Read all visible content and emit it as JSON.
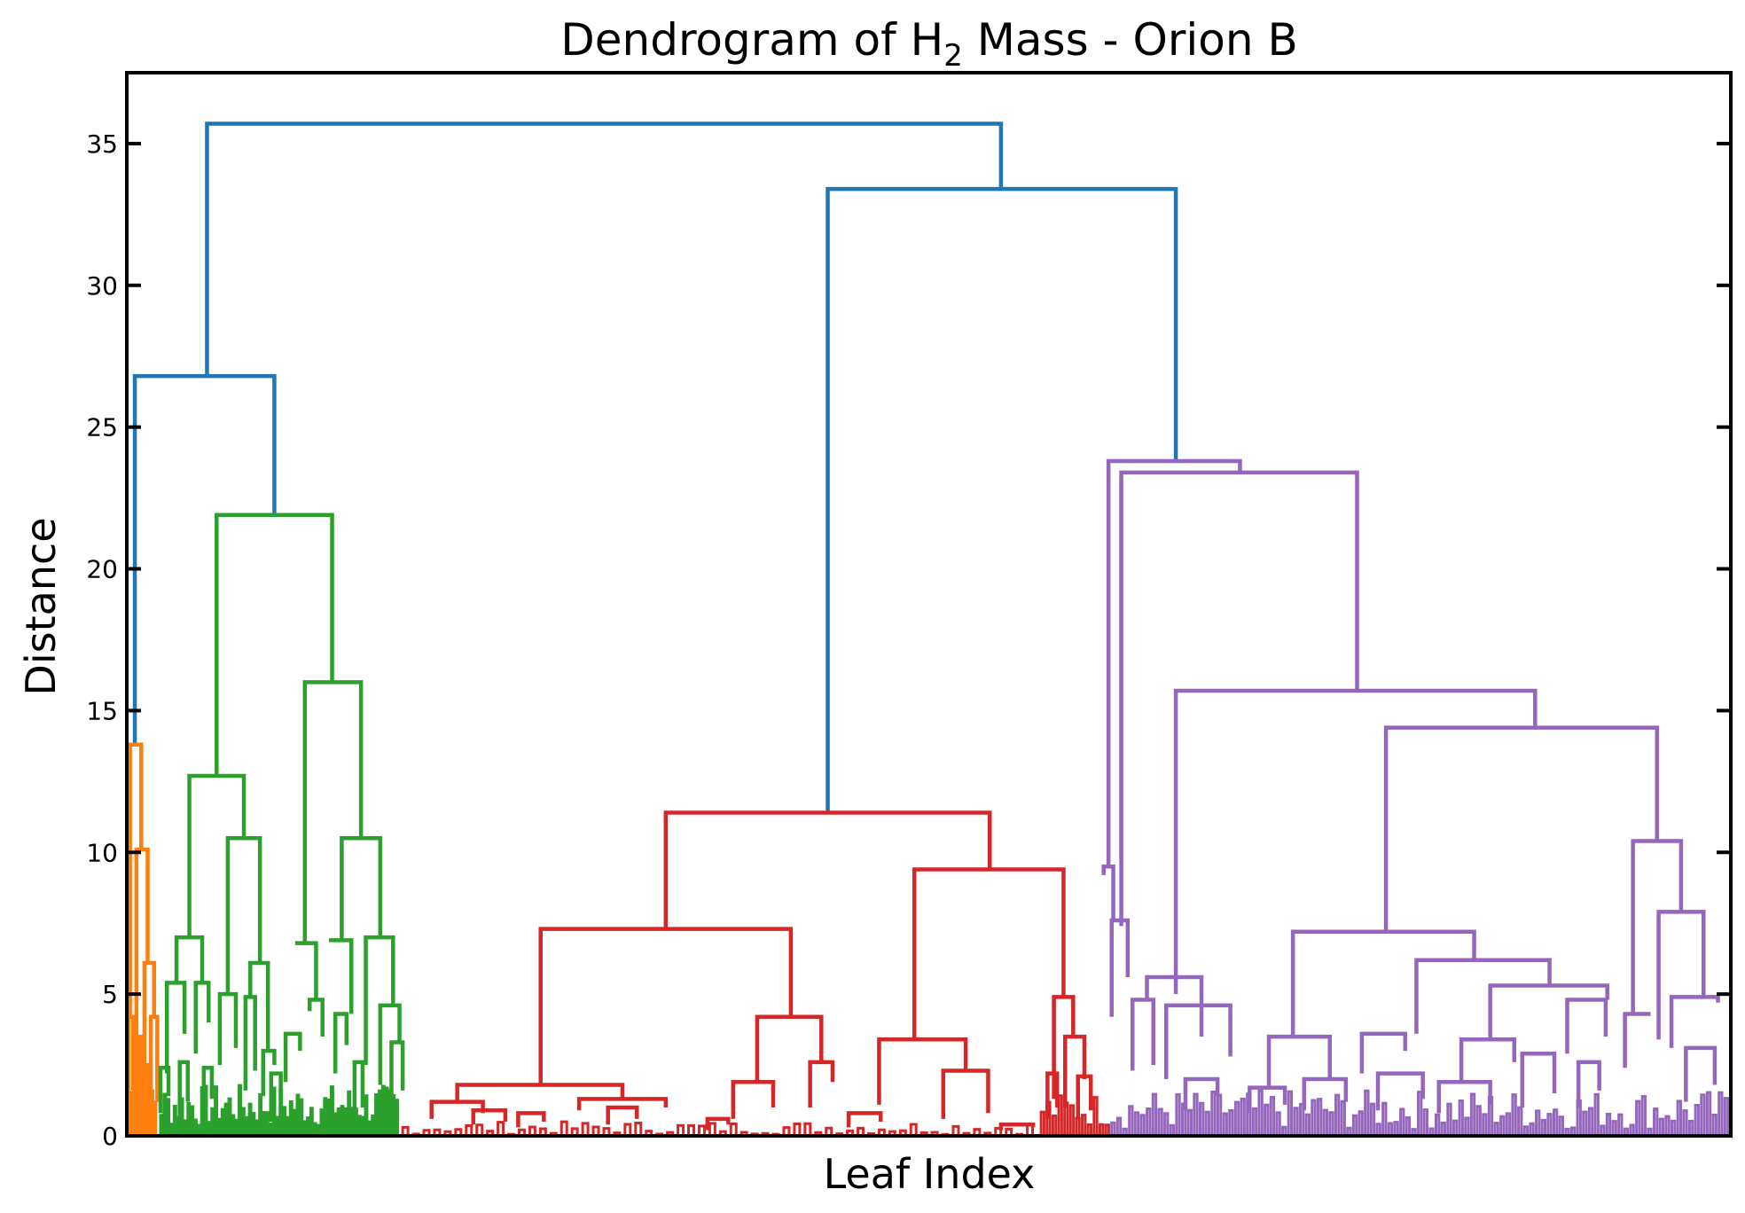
{
  "chart_data": {
    "type": "dendrogram",
    "title_main": "Dendrogram of H",
    "title_sub": "2",
    "title_rest": " Mass - Orion B",
    "xlabel": "Leaf Index",
    "ylabel": "Distance",
    "xlim": [
      0,
      1000
    ],
    "ylim": [
      0,
      37.5
    ],
    "yticks": [
      0,
      5,
      10,
      15,
      20,
      25,
      30,
      35
    ],
    "ytick_labels": [
      "0",
      "5",
      "10",
      "15",
      "20",
      "25",
      "30",
      "35"
    ],
    "colors": {
      "above_threshold": "#1f77b4",
      "orange": "#ff7f0e",
      "green": "#2ca02c",
      "red": "#d62728",
      "purple": "#9467bd"
    },
    "links": [
      {
        "c": "#1f77b4",
        "xl": 50,
        "xr": 545,
        "yl": 26.8,
        "yr": 33.4,
        "h": 35.7
      },
      {
        "c": "#1f77b4",
        "xl": 5,
        "xr": 92,
        "yl": 13.8,
        "yr": 21.9,
        "h": 26.8
      },
      {
        "c": "#1f77b4",
        "xl": 437,
        "xr": 654,
        "yl": 11.4,
        "yr": 23.8,
        "h": 33.4
      },
      {
        "c": "#ff7f0e",
        "xl": 2,
        "xr": 9,
        "yl": 4.2,
        "yr": 10.1,
        "h": 13.8
      },
      {
        "c": "#ff7f0e",
        "xl": 6,
        "xr": 13,
        "yl": 2.2,
        "yr": 6.1,
        "h": 10.1
      },
      {
        "c": "#ff7f0e",
        "xl": 11,
        "xr": 17,
        "yl": 1.8,
        "yr": 4.2,
        "h": 6.1
      },
      {
        "c": "#ff7f0e",
        "xl": 15,
        "xr": 19,
        "yl": 0.6,
        "yr": 1.2,
        "h": 4.2
      },
      {
        "c": "#ff7f0e",
        "xl": 1,
        "xr": 4,
        "yl": 0.8,
        "yr": 1.6,
        "h": 4.2
      },
      {
        "c": "#ff7f0e",
        "xl": 8,
        "xr": 10,
        "yl": 0.4,
        "yr": 0.9,
        "h": 3.5
      },
      {
        "c": "#ff7f0e",
        "xl": 12,
        "xr": 14,
        "yl": 0.3,
        "yr": 0.7,
        "h": 2.5
      },
      {
        "c": "#ff7f0e",
        "xl": 5,
        "xr": 7,
        "yl": 0.2,
        "yr": 0.5,
        "h": 2.8
      },
      {
        "c": "#2ca02c",
        "xl": 56,
        "xr": 128,
        "yl": 12.7,
        "yr": 16.0,
        "h": 21.9
      },
      {
        "c": "#2ca02c",
        "xl": 39,
        "xr": 73,
        "yl": 7.0,
        "yr": 10.5,
        "h": 12.7
      },
      {
        "c": "#2ca02c",
        "xl": 111,
        "xr": 146,
        "yl": 6.8,
        "yr": 10.5,
        "h": 16.0
      },
      {
        "c": "#2ca02c",
        "xl": 63,
        "xr": 83,
        "yl": 5.0,
        "yr": 6.1,
        "h": 10.5
      },
      {
        "c": "#2ca02c",
        "xl": 134,
        "xr": 158,
        "yl": 6.9,
        "yr": 7.0,
        "h": 10.5
      },
      {
        "c": "#2ca02c",
        "xl": 31,
        "xr": 47,
        "yl": 5.4,
        "yr": 5.4,
        "h": 7.0
      },
      {
        "c": "#2ca02c",
        "xl": 25,
        "xr": 36,
        "yl": 2.2,
        "yr": 3.6,
        "h": 5.4
      },
      {
        "c": "#2ca02c",
        "xl": 43,
        "xr": 51,
        "yl": 2.9,
        "yr": 4.0,
        "h": 5.4
      },
      {
        "c": "#2ca02c",
        "xl": 58,
        "xr": 68,
        "yl": 2.5,
        "yr": 3.1,
        "h": 5.0
      },
      {
        "c": "#2ca02c",
        "xl": 77,
        "xr": 88,
        "yl": 4.9,
        "yr": 3.0,
        "h": 6.1
      },
      {
        "c": "#2ca02c",
        "xl": 74,
        "xr": 80,
        "yl": 1.6,
        "yr": 2.3,
        "h": 4.9
      },
      {
        "c": "#2ca02c",
        "xl": 85,
        "xr": 92,
        "yl": 1.4,
        "yr": 2.5,
        "h": 3.0
      },
      {
        "c": "#2ca02c",
        "xl": 105,
        "xr": 118,
        "yl": 6.8,
        "yr": 4.8,
        "h": 6.8
      },
      {
        "c": "#2ca02c",
        "xl": 114,
        "xr": 122,
        "yl": 4.4,
        "yr": 3.5,
        "h": 4.8
      },
      {
        "c": "#2ca02c",
        "xl": 99,
        "xr": 108,
        "yl": 1.9,
        "yr": 3.0,
        "h": 3.6
      },
      {
        "c": "#2ca02c",
        "xl": 126,
        "xr": 140,
        "yl": 6.9,
        "yr": 4.3,
        "h": 6.9
      },
      {
        "c": "#2ca02c",
        "xl": 130,
        "xr": 137,
        "yl": 2.2,
        "yr": 3.2,
        "h": 4.3
      },
      {
        "c": "#2ca02c",
        "xl": 149,
        "xr": 166,
        "yl": 2.5,
        "yr": 4.6,
        "h": 7.0
      },
      {
        "c": "#2ca02c",
        "xl": 158,
        "xr": 170,
        "yl": 1.8,
        "yr": 3.3,
        "h": 4.6
      },
      {
        "c": "#2ca02c",
        "xl": 165,
        "xr": 172,
        "yl": 0.9,
        "yr": 1.6,
        "h": 3.3
      },
      {
        "c": "#2ca02c",
        "xl": 21,
        "xr": 26,
        "yl": 0.8,
        "yr": 1.4,
        "h": 2.4
      },
      {
        "c": "#2ca02c",
        "xl": 33,
        "xr": 38,
        "yl": 0.6,
        "yr": 1.2,
        "h": 2.6
      },
      {
        "c": "#2ca02c",
        "xl": 48,
        "xr": 53,
        "yl": 0.7,
        "yr": 1.3,
        "h": 2.4
      },
      {
        "c": "#2ca02c",
        "xl": 90,
        "xr": 96,
        "yl": 0.5,
        "yr": 1.1,
        "h": 2.2
      },
      {
        "c": "#2ca02c",
        "xl": 142,
        "xr": 147,
        "yl": 0.7,
        "yr": 1.0,
        "h": 2.6
      },
      {
        "c": "#d62728",
        "xl": 336,
        "xr": 538,
        "yl": 7.3,
        "yr": 9.4,
        "h": 11.4
      },
      {
        "c": "#d62728",
        "xl": 258,
        "xr": 414,
        "yl": 1.8,
        "yr": 4.2,
        "h": 7.3
      },
      {
        "c": "#d62728",
        "xl": 491,
        "xr": 584,
        "yl": 3.4,
        "yr": 4.9,
        "h": 9.4
      },
      {
        "c": "#d62728",
        "xl": 206,
        "xr": 309,
        "yl": 1.2,
        "yr": 1.3,
        "h": 1.8
      },
      {
        "c": "#d62728",
        "xl": 393,
        "xr": 433,
        "yl": 1.9,
        "yr": 2.6,
        "h": 4.2
      },
      {
        "c": "#d62728",
        "xl": 469,
        "xr": 523,
        "yl": 1.1,
        "yr": 2.3,
        "h": 3.4
      },
      {
        "c": "#d62728",
        "xl": 578,
        "xr": 590,
        "yl": 1.3,
        "yr": 3.5,
        "h": 4.9
      },
      {
        "c": "#d62728",
        "xl": 585,
        "xr": 597,
        "yl": 1.0,
        "yr": 2.0,
        "h": 3.5
      },
      {
        "c": "#d62728",
        "xl": 378,
        "xr": 403,
        "yl": 0.6,
        "yr": 1.0,
        "h": 1.9
      },
      {
        "c": "#d62728",
        "xl": 426,
        "xr": 440,
        "yl": 1.0,
        "yr": 1.9,
        "h": 2.6
      },
      {
        "c": "#d62728",
        "xl": 509,
        "xr": 537,
        "yl": 0.6,
        "yr": 0.8,
        "h": 2.3
      },
      {
        "c": "#d62728",
        "xl": 190,
        "xr": 222,
        "yl": 0.6,
        "yr": 0.8,
        "h": 1.2
      },
      {
        "c": "#d62728",
        "xl": 282,
        "xr": 336,
        "yl": 0.9,
        "yr": 1.0,
        "h": 1.3
      },
      {
        "c": "#d62728",
        "xl": 216,
        "xr": 236,
        "yl": 0.4,
        "yr": 0.5,
        "h": 0.9
      },
      {
        "c": "#d62728",
        "xl": 244,
        "xr": 260,
        "yl": 0.3,
        "yr": 0.5,
        "h": 0.8
      },
      {
        "c": "#d62728",
        "xl": 300,
        "xr": 318,
        "yl": 0.4,
        "yr": 0.6,
        "h": 1.0
      },
      {
        "c": "#d62728",
        "xl": 362,
        "xr": 375,
        "yl": 0.2,
        "yr": 0.4,
        "h": 0.6
      },
      {
        "c": "#d62728",
        "xl": 450,
        "xr": 470,
        "yl": 0.3,
        "yr": 0.5,
        "h": 0.8
      },
      {
        "c": "#d62728",
        "xl": 545,
        "xr": 565,
        "yl": 0.2,
        "yr": 0.3,
        "h": 0.4
      },
      {
        "c": "#d62728",
        "xl": 574,
        "xr": 580,
        "yl": 0.6,
        "yr": 1.0,
        "h": 2.2
      },
      {
        "c": "#d62728",
        "xl": 593,
        "xr": 601,
        "yl": 0.6,
        "yr": 0.9,
        "h": 2.1
      },
      {
        "c": "#9467bd",
        "xl": 612,
        "xr": 694,
        "yl": 9.5,
        "yr": 23.4,
        "h": 23.8
      },
      {
        "c": "#9467bd",
        "xl": 620,
        "xr": 767,
        "yl": 7.4,
        "yr": 15.7,
        "h": 23.4
      },
      {
        "c": "#9467bd",
        "xl": 654,
        "xr": 878,
        "yl": 5.0,
        "yr": 14.4,
        "h": 15.7
      },
      {
        "c": "#9467bd",
        "xl": 785,
        "xr": 954,
        "yl": 7.2,
        "yr": 10.4,
        "h": 14.4
      },
      {
        "c": "#9467bd",
        "xl": 727,
        "xr": 840,
        "yl": 3.5,
        "yr": 6.2,
        "h": 7.2
      },
      {
        "c": "#9467bd",
        "xl": 804,
        "xr": 887,
        "yl": 3.6,
        "yr": 5.3,
        "h": 6.2
      },
      {
        "c": "#9467bd",
        "xl": 850,
        "xr": 923,
        "yl": 3.4,
        "yr": 4.8,
        "h": 5.3
      },
      {
        "c": "#9467bd",
        "xl": 939,
        "xr": 969,
        "yl": 4.3,
        "yr": 7.9,
        "h": 10.4
      },
      {
        "c": "#9467bd",
        "xl": 955,
        "xr": 983,
        "yl": 3.4,
        "yr": 4.9,
        "h": 7.9
      },
      {
        "c": "#9467bd",
        "xl": 609,
        "xr": 615,
        "yl": 9.2,
        "yr": 7.6,
        "h": 9.5
      },
      {
        "c": "#9467bd",
        "xl": 614,
        "xr": 624,
        "yl": 4.2,
        "yr": 5.6,
        "h": 7.6
      },
      {
        "c": "#9467bd",
        "xl": 636,
        "xr": 670,
        "yl": 4.8,
        "yr": 3.5,
        "h": 5.6
      },
      {
        "c": "#9467bd",
        "xl": 627,
        "xr": 640,
        "yl": 2.3,
        "yr": 2.5,
        "h": 4.8
      },
      {
        "c": "#9467bd",
        "xl": 648,
        "xr": 688,
        "yl": 2.0,
        "yr": 2.8,
        "h": 4.6
      },
      {
        "c": "#9467bd",
        "xl": 712,
        "xr": 750,
        "yl": 1.7,
        "yr": 2.0,
        "h": 3.5
      },
      {
        "c": "#9467bd",
        "xl": 770,
        "xr": 797,
        "yl": 2.2,
        "yr": 3.0,
        "h": 3.6
      },
      {
        "c": "#9467bd",
        "xl": 832,
        "xr": 865,
        "yl": 1.9,
        "yr": 2.6,
        "h": 3.4
      },
      {
        "c": "#9467bd",
        "xl": 898,
        "xr": 922,
        "yl": 2.9,
        "yr": 3.5,
        "h": 4.8
      },
      {
        "c": "#9467bd",
        "xl": 934,
        "xr": 950,
        "yl": 2.4,
        "yr": 4.3,
        "h": 4.3
      },
      {
        "c": "#9467bd",
        "xl": 963,
        "xr": 992,
        "yl": 3.1,
        "yr": 4.7,
        "h": 4.9
      },
      {
        "c": "#9467bd",
        "xl": 700,
        "xr": 722,
        "yl": 0.8,
        "yr": 1.1,
        "h": 1.7
      },
      {
        "c": "#9467bd",
        "xl": 734,
        "xr": 760,
        "yl": 0.9,
        "yr": 1.2,
        "h": 2.0
      },
      {
        "c": "#9467bd",
        "xl": 780,
        "xr": 808,
        "yl": 0.9,
        "yr": 1.3,
        "h": 2.2
      },
      {
        "c": "#9467bd",
        "xl": 818,
        "xr": 850,
        "yl": 0.8,
        "yr": 1.1,
        "h": 1.9
      },
      {
        "c": "#9467bd",
        "xl": 870,
        "xr": 890,
        "yl": 1.0,
        "yr": 1.5,
        "h": 2.9
      },
      {
        "c": "#9467bd",
        "xl": 905,
        "xr": 918,
        "yl": 1.0,
        "yr": 1.6,
        "h": 2.6
      },
      {
        "c": "#9467bd",
        "xl": 972,
        "xr": 990,
        "yl": 1.2,
        "yr": 1.8,
        "h": 3.1
      },
      {
        "c": "#9467bd",
        "xl": 660,
        "xr": 680,
        "yl": 0.9,
        "yr": 1.4,
        "h": 2.0
      }
    ],
    "leaf_fans": [
      {
        "c": "#ff7f0e",
        "x0": 1,
        "x1": 19,
        "n": 20,
        "hmin": 0.3,
        "hmax": 2.5
      },
      {
        "c": "#2ca02c",
        "x0": 21,
        "x1": 170,
        "n": 140,
        "hmin": 0.3,
        "hmax": 1.8
      },
      {
        "c": "#d62728",
        "x0": 172,
        "x1": 568,
        "n": 120,
        "hmin": 0.05,
        "hmax": 0.5
      },
      {
        "c": "#d62728",
        "x0": 570,
        "x1": 614,
        "n": 24,
        "hmin": 0.3,
        "hmax": 1.5
      },
      {
        "c": "#9467bd",
        "x0": 614,
        "x1": 1000,
        "n": 210,
        "hmin": 0.2,
        "hmax": 1.6
      }
    ]
  }
}
